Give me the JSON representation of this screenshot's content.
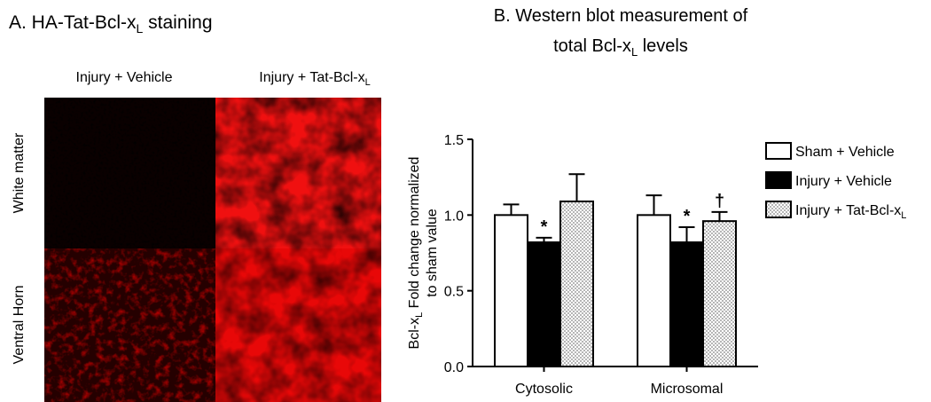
{
  "panel_a": {
    "title": {
      "text": "A.  HA-Tat-Bcl-x",
      "sub": "L",
      "suffix": " staining"
    },
    "columns": [
      {
        "text": "Injury + Vehicle"
      },
      {
        "text": "Injury + Tat-Bcl-x",
        "sub": "L"
      }
    ],
    "rows": [
      "White matter",
      "Ventral Horn"
    ]
  },
  "chart_data": {
    "type": "bar",
    "title": [
      "B. Western blot measurement of",
      {
        "text": "total Bcl-x",
        "sub": "L",
        "suffix": " levels"
      }
    ],
    "y_label": [
      {
        "text": "Bcl-x",
        "sub": "L",
        "suffix": "  Fold change normalized"
      },
      "to sham value"
    ],
    "categories": [
      "Cytosolic",
      "Microsomal"
    ],
    "series": [
      {
        "name": [
          "Sham + Vehicle"
        ],
        "color": "#ffffff",
        "values": [
          1.0,
          1.0
        ],
        "errors": [
          0.07,
          0.13
        ]
      },
      {
        "name": [
          "Injury + Vehicle"
        ],
        "color": "#000000",
        "values": [
          0.82,
          0.82
        ],
        "errors": [
          0.03,
          0.1
        ],
        "value_annotations": [
          "*",
          "*"
        ]
      },
      {
        "name": [
          "Injury + Tat-Bcl-x",
          "L"
        ],
        "color": "dotted",
        "values": [
          1.09,
          0.96
        ],
        "errors": [
          0.18,
          0.06
        ],
        "value_annotations": [
          null,
          "†"
        ]
      }
    ],
    "ylim": [
      0,
      1.5
    ],
    "yticks": [
      {
        "value": 0,
        "label": "0.0"
      },
      {
        "value": 0.5,
        "label": "0.5"
      },
      {
        "value": 1,
        "label": "1.0"
      },
      {
        "value": 1.5,
        "label": "1.5"
      }
    ],
    "grid": false,
    "legend": "right"
  }
}
